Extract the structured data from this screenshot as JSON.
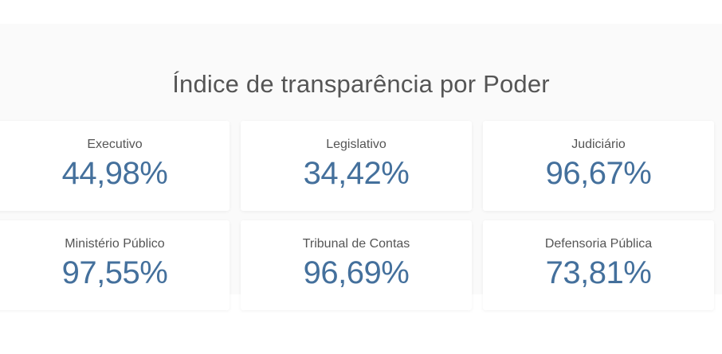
{
  "section": {
    "title": "Índice de transparência por Poder"
  },
  "cards": [
    {
      "label": "Executivo",
      "value": "44,98%"
    },
    {
      "label": "Legislativo",
      "value": "34,42%"
    },
    {
      "label": "Judiciário",
      "value": "96,67%"
    },
    {
      "label": "Ministério Público",
      "value": "97,55%"
    },
    {
      "label": "Tribunal de Contas",
      "value": "96,69%"
    },
    {
      "label": "Defensoria Pública",
      "value": "73,81%"
    }
  ],
  "colors": {
    "value_text": "#44709c",
    "label_text": "#555555",
    "section_background": "#fafafa",
    "card_background": "#ffffff"
  }
}
